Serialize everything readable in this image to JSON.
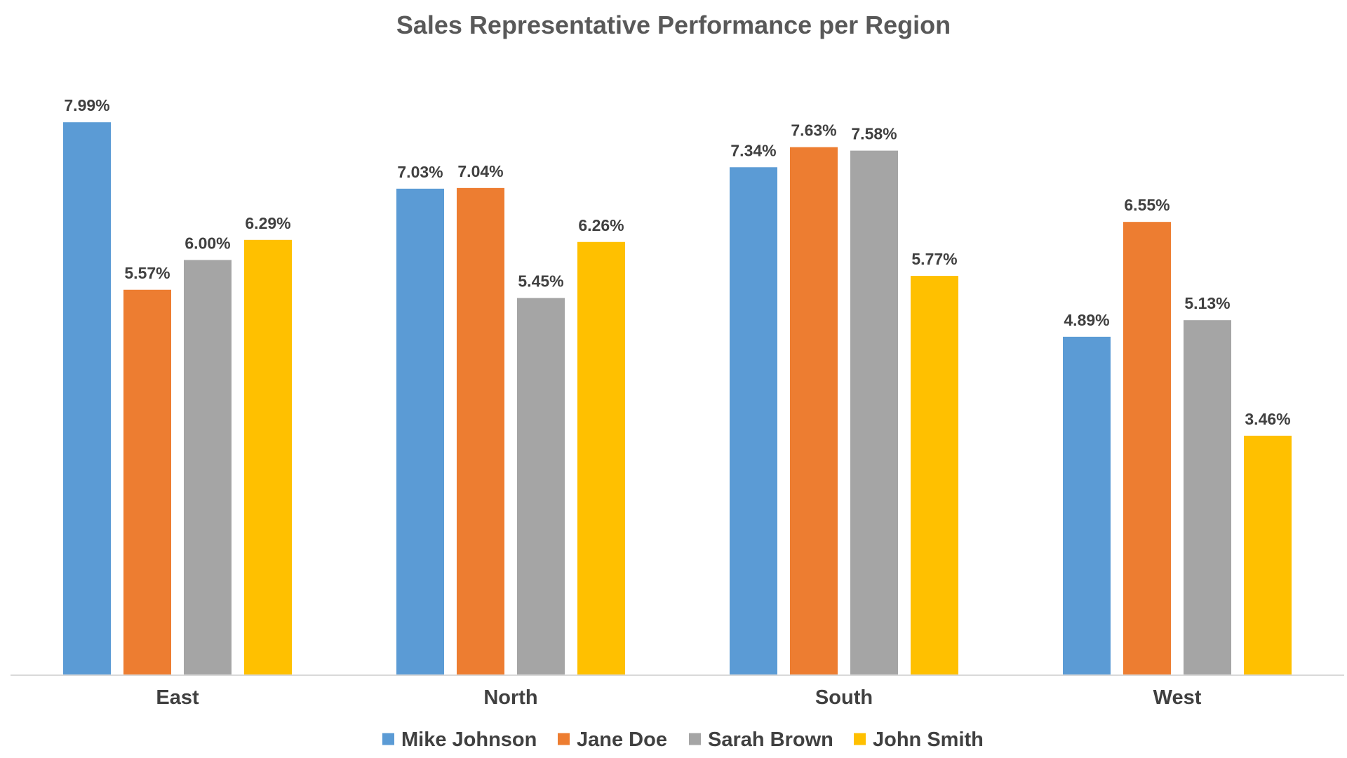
{
  "chart_data": {
    "type": "bar",
    "title": "Sales Representative Performance per Region",
    "categories": [
      "East",
      "North",
      "South",
      "West"
    ],
    "series": [
      {
        "name": "Mike Johnson",
        "color": "#5B9BD5",
        "values": [
          7.99,
          7.03,
          7.34,
          4.89
        ],
        "labels": [
          "7.99%",
          "7.03%",
          "7.34%",
          "4.89%"
        ]
      },
      {
        "name": "Jane Doe",
        "color": "#ED7D31",
        "values": [
          5.57,
          7.04,
          7.63,
          6.55
        ],
        "labels": [
          "5.57%",
          "7.04%",
          "7.63%",
          "6.55%"
        ]
      },
      {
        "name": "Sarah Brown",
        "color": "#A5A5A5",
        "values": [
          6.0,
          5.45,
          7.58,
          5.13
        ],
        "labels": [
          "6.00%",
          "5.45%",
          "7.58%",
          "5.13%"
        ]
      },
      {
        "name": "John Smith",
        "color": "#FFC000",
        "values": [
          6.29,
          6.26,
          5.77,
          3.46
        ],
        "labels": [
          "6.29%",
          "6.26%",
          "5.77%",
          "3.46%"
        ]
      }
    ],
    "xlabel": "",
    "ylabel": "",
    "ylim": [
      0,
      8
    ],
    "grid": false,
    "legend": "bottom"
  }
}
